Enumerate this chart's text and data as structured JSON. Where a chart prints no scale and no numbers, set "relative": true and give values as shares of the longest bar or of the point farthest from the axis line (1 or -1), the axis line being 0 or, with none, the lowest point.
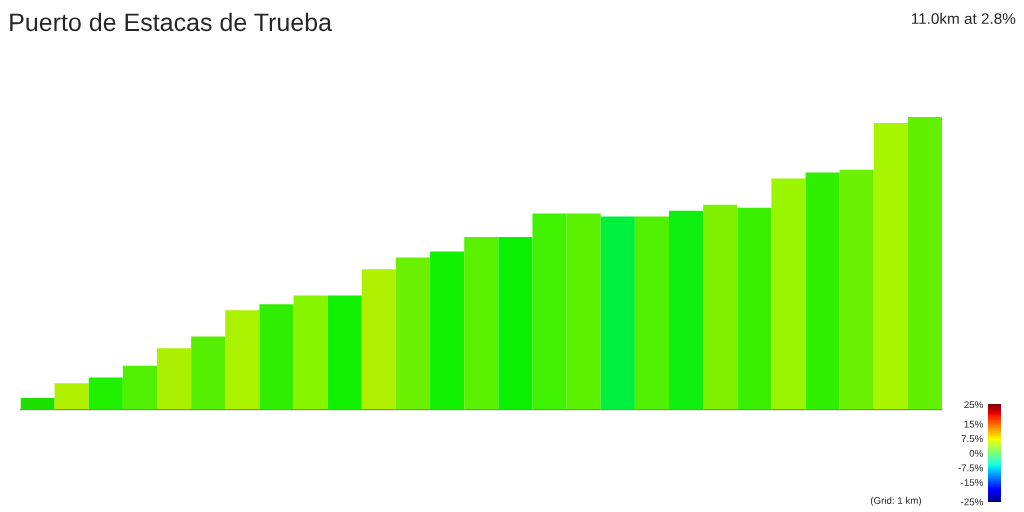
{
  "chart_data": {
    "type": "bar",
    "title": "Puerto de Estacas de Trueba",
    "subtitle": "11.0km at 2.8%",
    "relative": true,
    "categories": [
      null,
      null,
      null,
      null,
      null,
      null,
      null,
      null,
      null,
      null,
      null,
      null,
      null,
      null,
      null,
      null,
      null,
      null,
      null,
      null,
      null,
      null,
      null,
      null,
      null,
      null,
      null
    ],
    "values": [
      0.04,
      0.09,
      0.11,
      0.15,
      0.21,
      0.25,
      0.34,
      0.36,
      0.39,
      0.39,
      0.48,
      0.52,
      0.54,
      0.59,
      0.59,
      0.67,
      0.67,
      0.66,
      0.66,
      0.68,
      0.7,
      0.69,
      0.79,
      0.81,
      0.82,
      0.98,
      1
    ],
    "colors": [
      "#1ee000",
      "#b0f000",
      "#1ef000",
      "#50f000",
      "#aaf000",
      "#55ee00",
      "#aaf200",
      "#30ee00",
      "#88f500",
      "#10f000",
      "#aef000",
      "#6af000",
      "#10f000",
      "#5af000",
      "#0af000",
      "#40f200",
      "#5af000",
      "#00f040",
      "#50f000",
      "#10f010",
      "#80f000",
      "#3af000",
      "#9af500",
      "#30f000",
      "#6af000",
      "#a8f500",
      "#60f000"
    ],
    "clim": [
      -25,
      25
    ],
    "cticks": [
      {
        "value": 25,
        "label": "25%"
      },
      {
        "value": 15,
        "label": "15%"
      },
      {
        "value": 7.5,
        "label": "7.5%"
      },
      {
        "value": 0,
        "label": "0%"
      },
      {
        "value": -7.5,
        "label": "-7.5%"
      },
      {
        "value": -15,
        "label": "-15%"
      },
      {
        "value": -25,
        "label": "-25%"
      }
    ],
    "annotations": [
      "(Grid: 1 km)"
    ]
  }
}
